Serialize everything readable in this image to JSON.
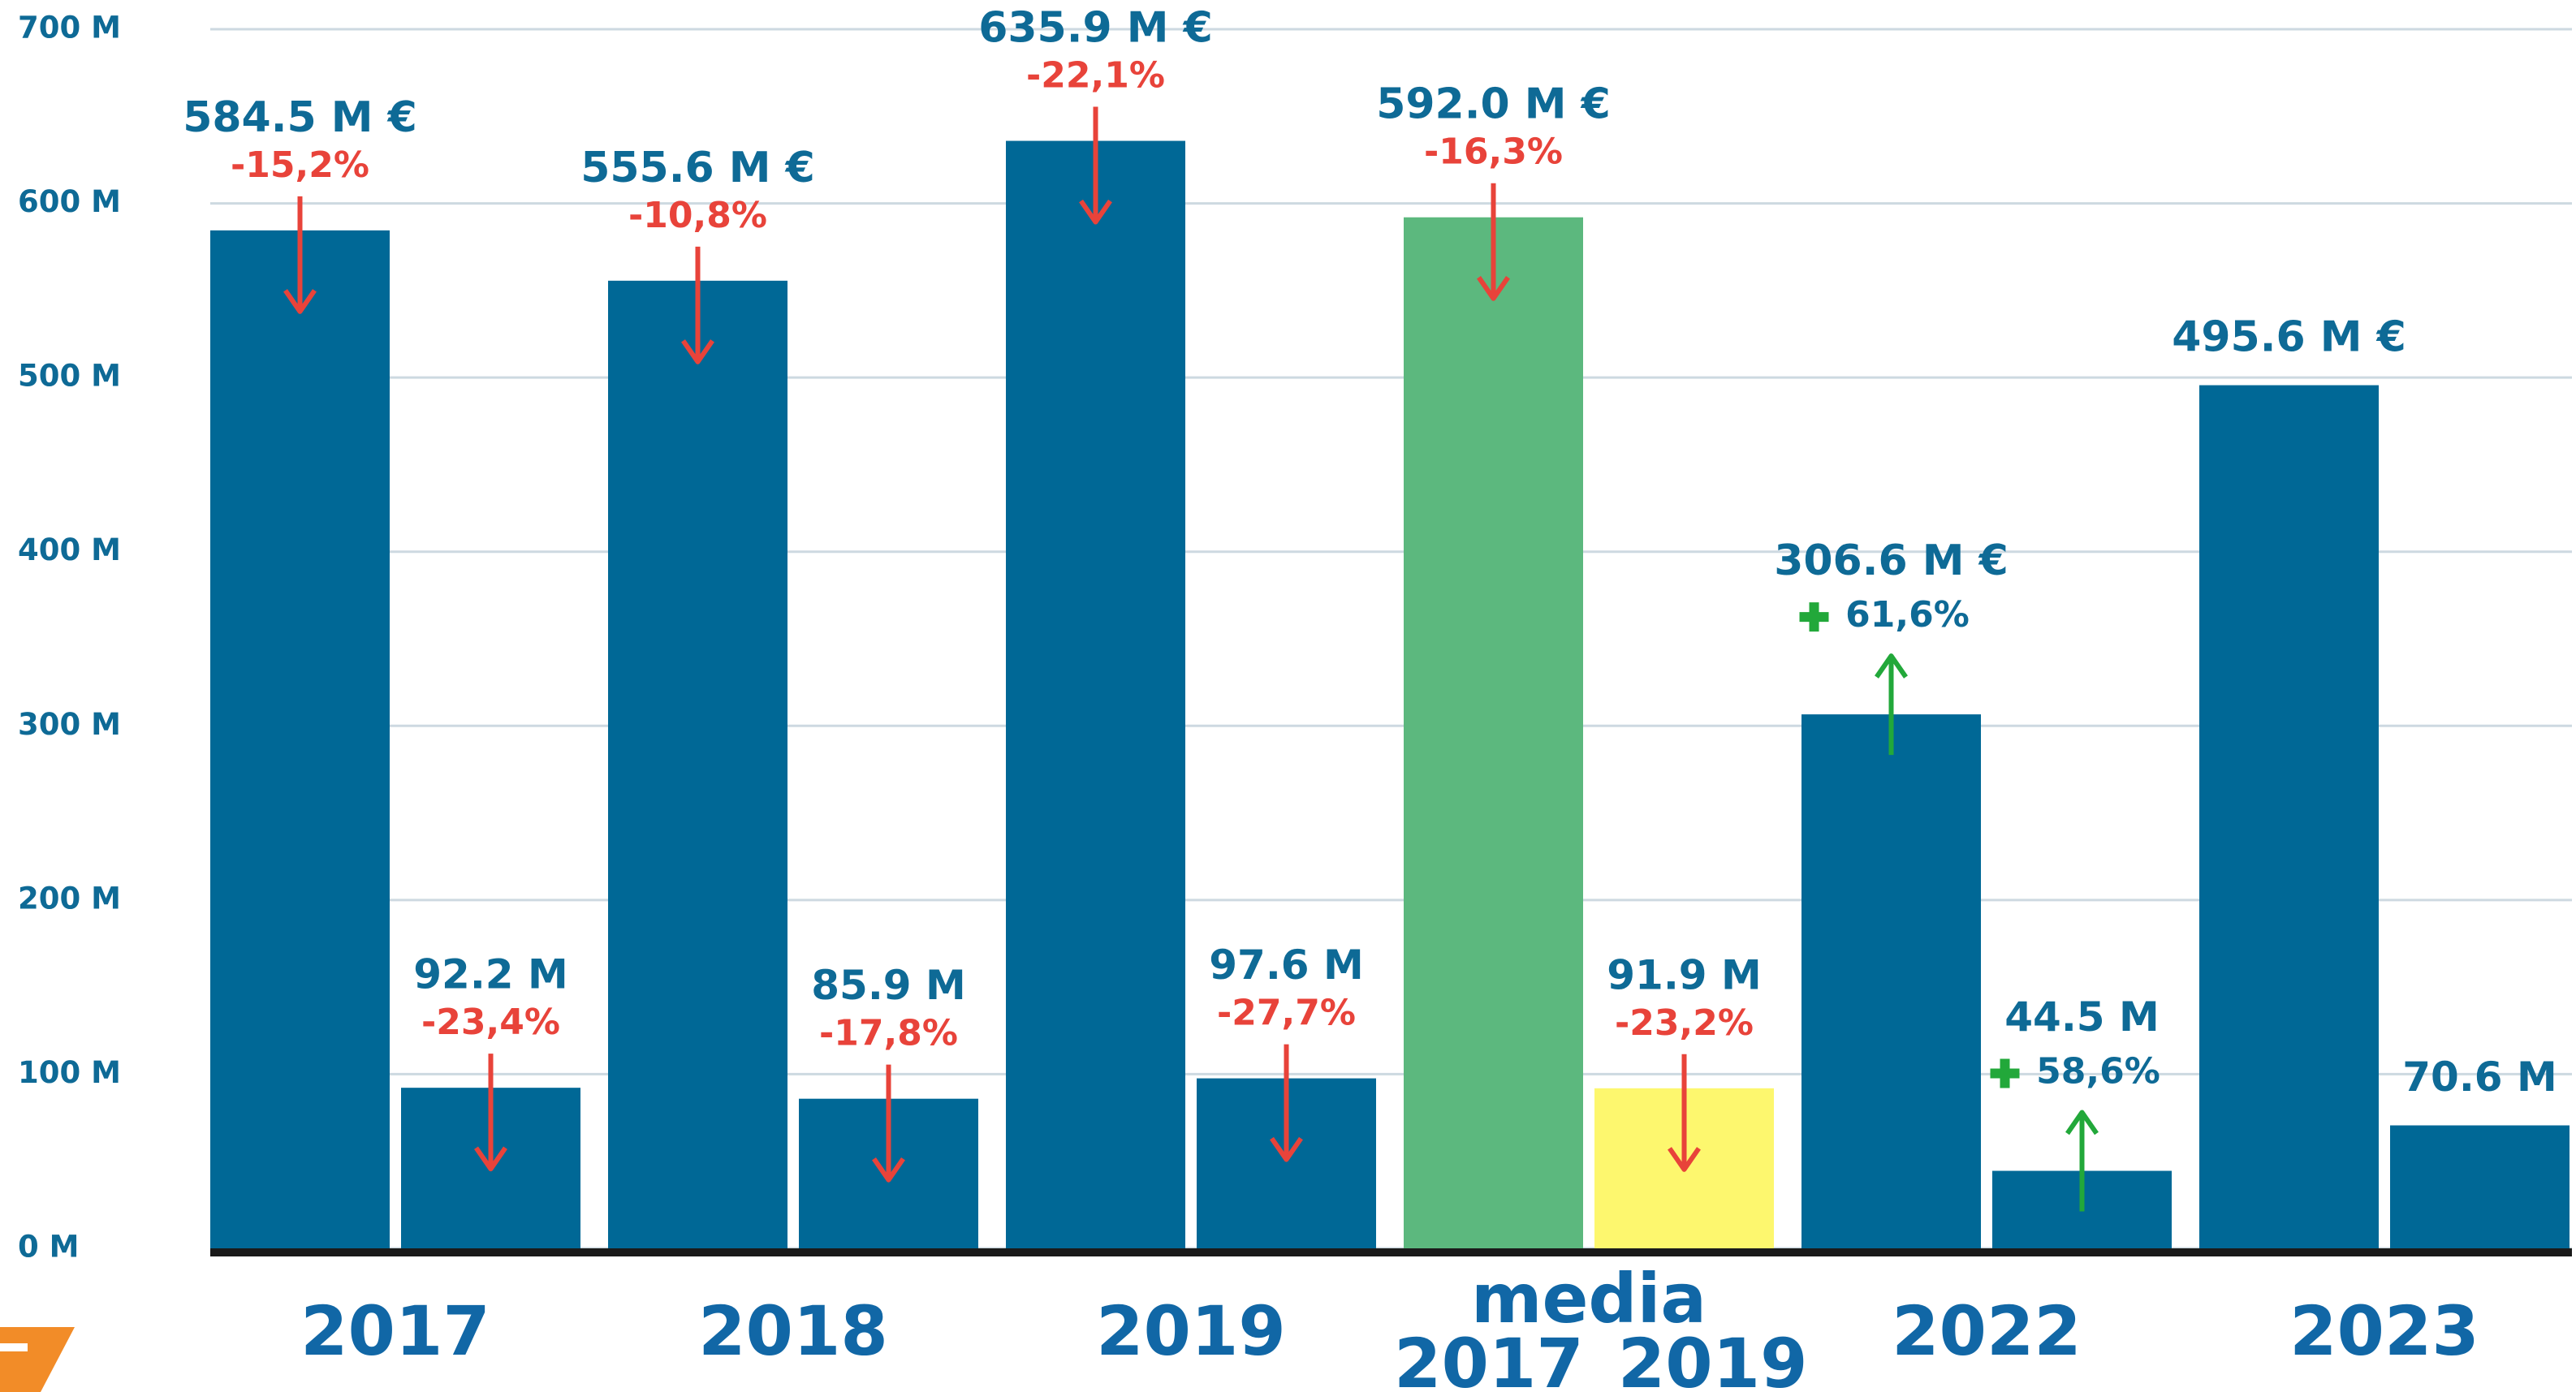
{
  "chart_data": {
    "type": "bar",
    "categories": [
      "2017",
      "2018",
      "2019",
      "media\n2017_2019",
      "2022",
      "2023"
    ],
    "ylim": [
      0,
      700
    ],
    "yticks": [
      {
        "value": 0,
        "label": "0 M"
      },
      {
        "value": 100,
        "label": "100 M"
      },
      {
        "value": 200,
        "label": "200 M"
      },
      {
        "value": 300,
        "label": "300 M"
      },
      {
        "value": 400,
        "label": "400 M"
      },
      {
        "value": 500,
        "label": "500 M"
      },
      {
        "value": 600,
        "label": "600 M"
      },
      {
        "value": 700,
        "label": "700 M"
      }
    ],
    "grid": true,
    "series": [
      {
        "colors": [
          "#006896",
          "#006896",
          "#006896",
          "#5cb87e",
          "#006896",
          "#006896"
        ],
        "values": [
          584.5,
          555.6,
          635.9,
          592.0,
          306.6,
          495.6
        ],
        "value_labels": [
          "584.5 M €",
          "555.6 M €",
          "635.9 M €",
          "592.0 M €",
          "306.6 M €",
          "495.6 M €"
        ],
        "changes": [
          {
            "label": "-15,2%",
            "direction": "down"
          },
          {
            "label": "-10,8%",
            "direction": "down"
          },
          {
            "label": "-22,1%",
            "direction": "down"
          },
          {
            "label": "-16,3%",
            "direction": "down"
          },
          {
            "label": "61,6%",
            "direction": "up"
          },
          null
        ]
      },
      {
        "colors": [
          "#006896",
          "#006896",
          "#006896",
          "#fdf76e",
          "#006896",
          "#006896"
        ],
        "values": [
          92.2,
          85.9,
          97.6,
          91.9,
          44.5,
          70.6
        ],
        "value_labels": [
          "92.2 M",
          "85.9 M",
          "97.6 M",
          "91.9 M",
          "44.5 M",
          "70.6 M"
        ],
        "changes": [
          {
            "label": "-23,4%",
            "direction": "down"
          },
          {
            "label": "-17,8%",
            "direction": "down"
          },
          {
            "label": "-27,7%",
            "direction": "down"
          },
          {
            "label": "-23,2%",
            "direction": "down"
          },
          {
            "label": "58,6%",
            "direction": "up"
          },
          null
        ]
      }
    ]
  }
}
